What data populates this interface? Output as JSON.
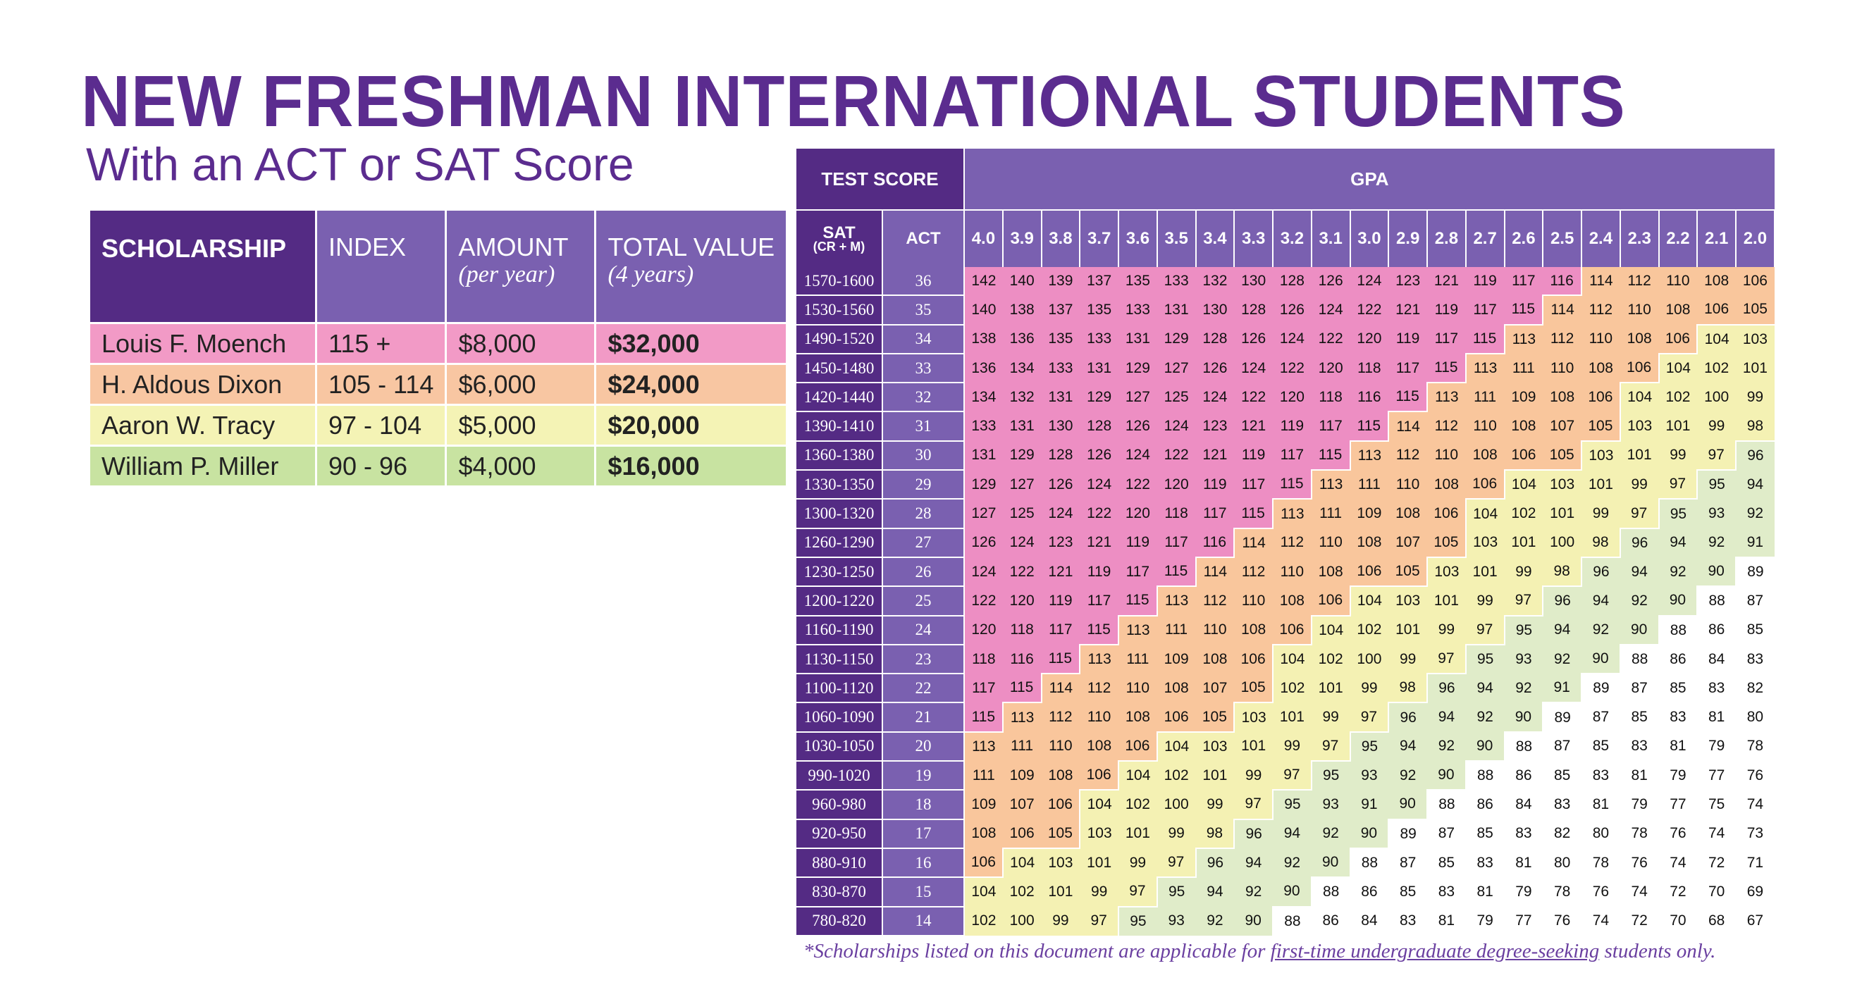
{
  "title": "NEW FRESHMAN INTERNATIONAL STUDENTS",
  "subtitle": "With an ACT or SAT Score",
  "scholarship_table": {
    "headers": {
      "scholarship": "SCHOLARSHIP",
      "index": "INDEX",
      "amount": "AMOUNT",
      "amount_sub": "(per year)",
      "total": "TOTAL VALUE",
      "total_sub": "(4 years)"
    },
    "rows": [
      {
        "name": "Louis F. Moench",
        "index": "115 +",
        "amount": "$8,000",
        "total": "$32,000"
      },
      {
        "name": "H. Aldous Dixon",
        "index": "105 - 114",
        "amount": "$6,000",
        "total": "$24,000"
      },
      {
        "name": "Aaron W. Tracy",
        "index": "97 - 104",
        "amount": "$5,000",
        "total": "$20,000"
      },
      {
        "name": "William P. Miller",
        "index": "90 - 96",
        "amount": "$4,000",
        "total": "$16,000"
      }
    ]
  },
  "colors": {
    "tier1": "#f29ac6",
    "tier2": "#f8c6a2",
    "tier3": "#f4f3b5",
    "tier4": "#c8e3a1",
    "tier1_grid": "#ed8ec3",
    "tier2_grid": "#f9c69c",
    "tier3_grid": "#f4f1b3",
    "tier4_grid": "#e0ecc9",
    "purple_dark": "#542b84",
    "purple_mid": "#7a60b0"
  },
  "score_grid": {
    "header_test_score": "TEST SCORE",
    "header_gpa": "GPA",
    "header_sat": "SAT",
    "header_sat_sub": "(CR + M)",
    "header_act": "ACT",
    "gpas": [
      "4.0",
      "3.9",
      "3.8",
      "3.7",
      "3.6",
      "3.5",
      "3.4",
      "3.3",
      "3.2",
      "3.1",
      "3.0",
      "2.9",
      "2.8",
      "2.7",
      "2.6",
      "2.5",
      "2.4",
      "2.3",
      "2.2",
      "2.1",
      "2.0"
    ],
    "rows": [
      {
        "sat": "1570-1600",
        "act": "36",
        "values": [
          142,
          140,
          139,
          137,
          135,
          133,
          132,
          130,
          128,
          126,
          124,
          123,
          121,
          119,
          117,
          116,
          114,
          112,
          110,
          108,
          106
        ]
      },
      {
        "sat": "1530-1560",
        "act": "35",
        "values": [
          140,
          138,
          137,
          135,
          133,
          131,
          130,
          128,
          126,
          124,
          122,
          121,
          119,
          117,
          115,
          114,
          112,
          110,
          108,
          106,
          105
        ]
      },
      {
        "sat": "1490-1520",
        "act": "34",
        "values": [
          138,
          136,
          135,
          133,
          131,
          129,
          128,
          126,
          124,
          122,
          120,
          119,
          117,
          115,
          113,
          112,
          110,
          108,
          106,
          104,
          103
        ]
      },
      {
        "sat": "1450-1480",
        "act": "33",
        "values": [
          136,
          134,
          133,
          131,
          129,
          127,
          126,
          124,
          122,
          120,
          118,
          117,
          115,
          113,
          111,
          110,
          108,
          106,
          104,
          102,
          101
        ]
      },
      {
        "sat": "1420-1440",
        "act": "32",
        "values": [
          134,
          132,
          131,
          129,
          127,
          125,
          124,
          122,
          120,
          118,
          116,
          115,
          113,
          111,
          109,
          108,
          106,
          104,
          102,
          100,
          99
        ]
      },
      {
        "sat": "1390-1410",
        "act": "31",
        "values": [
          133,
          131,
          130,
          128,
          126,
          124,
          123,
          121,
          119,
          117,
          115,
          114,
          112,
          110,
          108,
          107,
          105,
          103,
          101,
          99,
          98
        ]
      },
      {
        "sat": "1360-1380",
        "act": "30",
        "values": [
          131,
          129,
          128,
          126,
          124,
          122,
          121,
          119,
          117,
          115,
          113,
          112,
          110,
          108,
          106,
          105,
          103,
          101,
          99,
          97,
          96
        ]
      },
      {
        "sat": "1330-1350",
        "act": "29",
        "values": [
          129,
          127,
          126,
          124,
          122,
          120,
          119,
          117,
          115,
          113,
          111,
          110,
          108,
          106,
          104,
          103,
          101,
          99,
          97,
          95,
          94
        ]
      },
      {
        "sat": "1300-1320",
        "act": "28",
        "values": [
          127,
          125,
          124,
          122,
          120,
          118,
          117,
          115,
          113,
          111,
          109,
          108,
          106,
          104,
          102,
          101,
          99,
          97,
          95,
          93,
          92
        ]
      },
      {
        "sat": "1260-1290",
        "act": "27",
        "values": [
          126,
          124,
          123,
          121,
          119,
          117,
          116,
          114,
          112,
          110,
          108,
          107,
          105,
          103,
          101,
          100,
          98,
          96,
          94,
          92,
          91
        ]
      },
      {
        "sat": "1230-1250",
        "act": "26",
        "values": [
          124,
          122,
          121,
          119,
          117,
          115,
          114,
          112,
          110,
          108,
          106,
          105,
          103,
          101,
          99,
          98,
          96,
          94,
          92,
          90,
          89
        ]
      },
      {
        "sat": "1200-1220",
        "act": "25",
        "values": [
          122,
          120,
          119,
          117,
          115,
          113,
          112,
          110,
          108,
          106,
          104,
          103,
          101,
          99,
          97,
          96,
          94,
          92,
          90,
          88,
          87
        ]
      },
      {
        "sat": "1160-1190",
        "act": "24",
        "values": [
          120,
          118,
          117,
          115,
          113,
          111,
          110,
          108,
          106,
          104,
          102,
          101,
          99,
          97,
          95,
          94,
          92,
          90,
          88,
          86,
          85
        ]
      },
      {
        "sat": "1130-1150",
        "act": "23",
        "values": [
          118,
          116,
          115,
          113,
          111,
          109,
          108,
          106,
          104,
          102,
          100,
          99,
          97,
          95,
          93,
          92,
          90,
          88,
          86,
          84,
          83
        ]
      },
      {
        "sat": "1100-1120",
        "act": "22",
        "values": [
          117,
          115,
          114,
          112,
          110,
          108,
          107,
          105,
          102,
          101,
          99,
          98,
          96,
          94,
          92,
          91,
          89,
          87,
          85,
          83,
          82
        ]
      },
      {
        "sat": "1060-1090",
        "act": "21",
        "values": [
          115,
          113,
          112,
          110,
          108,
          106,
          105,
          103,
          101,
          99,
          97,
          96,
          94,
          92,
          90,
          89,
          87,
          85,
          83,
          81,
          80
        ]
      },
      {
        "sat": "1030-1050",
        "act": "20",
        "values": [
          113,
          111,
          110,
          108,
          106,
          104,
          103,
          101,
          99,
          97,
          95,
          94,
          92,
          90,
          88,
          87,
          85,
          83,
          81,
          79,
          78
        ]
      },
      {
        "sat": "990-1020",
        "act": "19",
        "values": [
          111,
          109,
          108,
          106,
          104,
          102,
          101,
          99,
          97,
          95,
          93,
          92,
          90,
          88,
          86,
          85,
          83,
          81,
          79,
          77,
          76
        ]
      },
      {
        "sat": "960-980",
        "act": "18",
        "values": [
          109,
          107,
          106,
          104,
          102,
          100,
          99,
          97,
          95,
          93,
          91,
          90,
          88,
          86,
          84,
          83,
          81,
          79,
          77,
          75,
          74
        ]
      },
      {
        "sat": "920-950",
        "act": "17",
        "values": [
          108,
          106,
          105,
          103,
          101,
          99,
          98,
          96,
          94,
          92,
          90,
          89,
          87,
          85,
          83,
          82,
          80,
          78,
          76,
          74,
          73
        ]
      },
      {
        "sat": "880-910",
        "act": "16",
        "values": [
          106,
          104,
          103,
          101,
          99,
          97,
          96,
          94,
          92,
          90,
          88,
          87,
          85,
          83,
          81,
          80,
          78,
          76,
          74,
          72,
          71
        ]
      },
      {
        "sat": "830-870",
        "act": "15",
        "values": [
          104,
          102,
          101,
          99,
          97,
          95,
          94,
          92,
          90,
          88,
          86,
          85,
          83,
          81,
          79,
          78,
          76,
          74,
          72,
          70,
          69
        ]
      },
      {
        "sat": "780-820",
        "act": "14",
        "values": [
          102,
          100,
          99,
          97,
          95,
          93,
          92,
          90,
          88,
          86,
          84,
          83,
          81,
          79,
          77,
          76,
          74,
          72,
          70,
          68,
          67
        ]
      }
    ]
  },
  "footnote": {
    "before": "*Scholarships listed on this document are applicable for ",
    "link": "first-time undergraduate degree-seeking",
    "after": " students only."
  }
}
